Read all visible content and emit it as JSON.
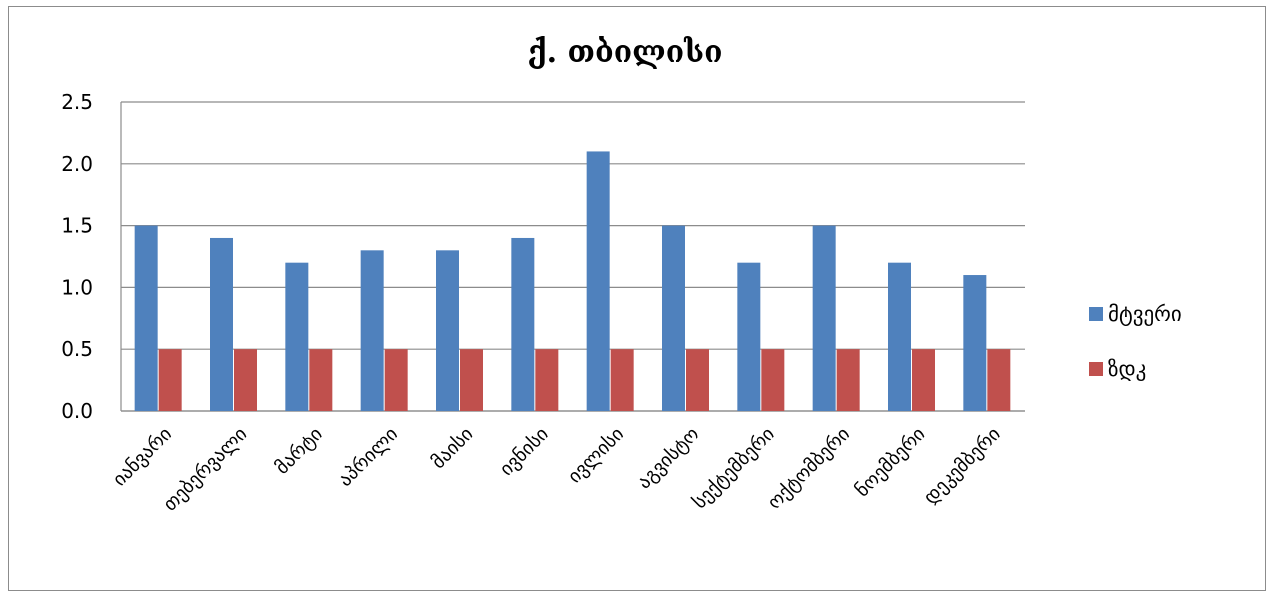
{
  "chart_data": {
    "type": "bar",
    "title": "ქ. თბილისი",
    "categories": [
      "იანვარი",
      "თებერვალი",
      "მარტი",
      "აპრილი",
      "მაისი",
      "ივნისი",
      "ივლისი",
      "აგვისტო",
      "სექტემბერი",
      "ოქტომბერი",
      "ნოემბერი",
      "დეკემბერი"
    ],
    "series": [
      {
        "name": "მტვერი",
        "color": "#4f81bd",
        "values": [
          1.5,
          1.4,
          1.2,
          1.3,
          1.3,
          1.4,
          2.1,
          1.5,
          1.2,
          1.5,
          1.2,
          1.1
        ]
      },
      {
        "name": "ზდკ",
        "color": "#c0504d",
        "values": [
          0.5,
          0.5,
          0.5,
          0.5,
          0.5,
          0.5,
          0.5,
          0.5,
          0.5,
          0.5,
          0.5,
          0.5
        ]
      }
    ],
    "ylim": [
      0,
      2.5
    ],
    "yticks": [
      "0.0",
      "0.5",
      "1.0",
      "1.5",
      "2.0",
      "2.5"
    ],
    "grid": true,
    "legend_position": "right"
  }
}
